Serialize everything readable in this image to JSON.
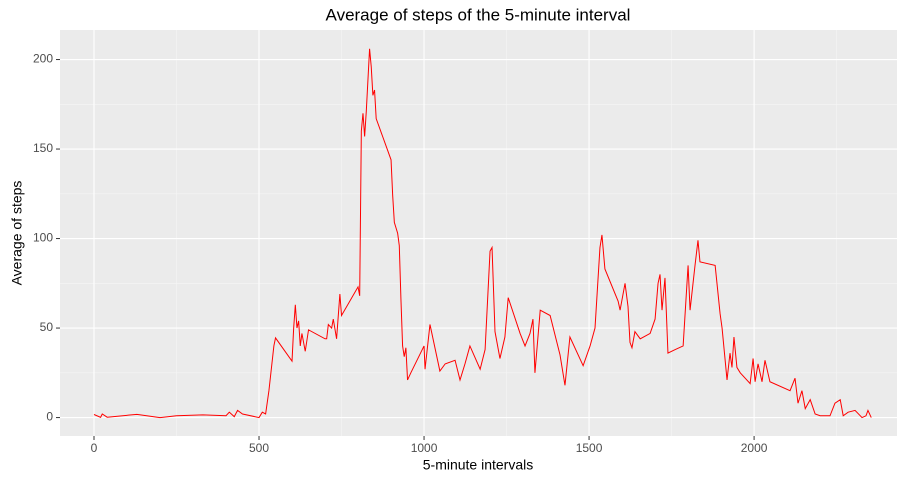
{
  "chart_data": {
    "type": "line",
    "title": "Average of steps of the 5-minute interval",
    "x_label": "5-minute intervals",
    "y_label": "Average of steps",
    "x": [
      0,
      20,
      25,
      40,
      130,
      200,
      250,
      330,
      400,
      410,
      425,
      435,
      450,
      500,
      510,
      520,
      530,
      545,
      550,
      600,
      605,
      610,
      615,
      620,
      625,
      630,
      640,
      650,
      700,
      705,
      710,
      720,
      725,
      735,
      745,
      750,
      800,
      805,
      810,
      815,
      820,
      825,
      835,
      840,
      845,
      850,
      855,
      900,
      905,
      910,
      920,
      925,
      930,
      935,
      940,
      945,
      950,
      960,
      1000,
      1003,
      1018,
      1048,
      1064,
      1094,
      1109,
      1124,
      1139,
      1170,
      1185,
      1200,
      1206,
      1215,
      1230,
      1245,
      1255,
      1291,
      1306,
      1321,
      1330,
      1336,
      1352,
      1382,
      1412,
      1427,
      1442,
      1482,
      1503,
      1518,
      1533,
      1539,
      1548,
      1588,
      1594,
      1609,
      1618,
      1624,
      1630,
      1639,
      1655,
      1685,
      1700,
      1709,
      1715,
      1721,
      1730,
      1739,
      1761,
      1785,
      1800,
      1806,
      1815,
      1821,
      1830,
      1836,
      1882,
      1897,
      1903,
      1918,
      1927,
      1933,
      1939,
      1948,
      1958,
      1988,
      1997,
      2003,
      2012,
      2024,
      2033,
      2048,
      2109,
      2124,
      2133,
      2145,
      2155,
      2170,
      2185,
      2200,
      2230,
      2245,
      2261,
      2270,
      2285,
      2306,
      2327,
      2339,
      2345,
      2355
    ],
    "series": [
      {
        "name": "steps",
        "color": "red",
        "values": [
          1.7,
          0.1,
          2,
          0.2,
          1.8,
          0,
          1,
          1.5,
          1,
          3,
          0.5,
          4,
          2,
          0,
          3,
          2,
          15,
          40,
          44.5,
          31.5,
          50,
          63,
          50,
          54,
          40,
          47,
          37,
          49,
          44,
          44,
          52,
          50,
          55,
          44,
          69,
          57,
          73,
          68,
          160,
          170,
          157,
          171,
          206,
          196,
          180,
          183,
          167,
          144,
          124,
          109,
          103,
          96,
          66,
          40,
          34,
          39,
          21,
          25,
          40,
          27,
          52,
          26,
          30,
          32,
          21,
          30,
          40,
          27,
          38,
          93,
          95,
          48,
          33,
          45,
          67,
          47,
          40,
          47,
          55,
          25,
          60,
          57,
          35,
          18,
          45,
          29,
          40,
          50,
          95,
          102,
          83,
          65,
          60,
          75,
          62,
          42,
          39,
          48,
          44,
          47,
          55,
          75,
          80,
          60,
          78,
          36,
          38,
          40,
          85,
          60,
          75,
          85,
          99,
          87,
          85,
          58,
          50,
          21,
          36,
          28,
          45,
          28,
          25,
          19,
          33,
          20,
          30,
          20,
          32,
          20,
          15,
          22,
          8,
          15,
          5,
          10,
          2,
          1,
          1,
          8,
          10,
          1,
          3,
          4,
          0,
          1,
          4,
          0
        ]
      }
    ],
    "xlim": [
      -103,
      2433
    ],
    "ylim": [
      -10.3,
      216.5
    ],
    "xticks": [
      0,
      500,
      1000,
      1500,
      2000
    ],
    "yticks": [
      0,
      50,
      100,
      150,
      200
    ],
    "x_minor_ticks": [
      250,
      750,
      1250,
      1750,
      2250
    ],
    "y_minor_ticks": [
      25,
      75,
      125,
      175
    ],
    "grid": true
  }
}
